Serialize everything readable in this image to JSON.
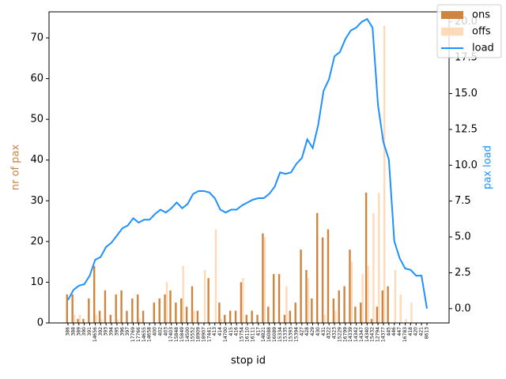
{
  "chart_data": {
    "type": "bar_line",
    "x_label": "stop id",
    "y_label": "nr of pax",
    "y2_label": "pax load",
    "categories": [
      "386",
      "388",
      "389",
      "390",
      "391",
      "14656",
      "392",
      "393",
      "394",
      "395",
      "396",
      "397",
      "17769",
      "17766",
      "14655",
      "14658",
      "400",
      "402",
      "403",
      "17403",
      "15848",
      "15849",
      "14500",
      "15552",
      "18909",
      "18907",
      "17441",
      "413",
      "414",
      "14700",
      "415",
      "416",
      "15754",
      "16110",
      "16111",
      "417",
      "14821",
      "16088",
      "16089",
      "15334",
      "15335",
      "15393",
      "15394",
      "427",
      "428",
      "429",
      "430",
      "431",
      "4322",
      "4323",
      "15229",
      "16799",
      "14339",
      "14342",
      "14347",
      "14340",
      "15432",
      "12794",
      "14377",
      "445",
      "446",
      "447",
      "16783",
      "418",
      "420",
      "421",
      "8613"
    ],
    "series": [
      {
        "name": "ons",
        "color": "#cd853f",
        "values": [
          7,
          7,
          1,
          1,
          6,
          14,
          3,
          8,
          2,
          7,
          8,
          3,
          6,
          7,
          3,
          0,
          5,
          6,
          7,
          8,
          5,
          6,
          4,
          9,
          3,
          0,
          11,
          0,
          5,
          2,
          3,
          3,
          10,
          2,
          3,
          2,
          22,
          4,
          12,
          12,
          2,
          3,
          5,
          18,
          13,
          6,
          27,
          21,
          23,
          6,
          8,
          9,
          18,
          4,
          5,
          32,
          1,
          4,
          8,
          9,
          0,
          0,
          0,
          0,
          0,
          0,
          0
        ]
      },
      {
        "name": "offs",
        "color": "#ffdab9",
        "values": [
          0,
          2,
          2,
          0,
          0,
          2,
          1,
          0,
          0,
          1,
          0,
          0,
          0,
          1,
          0,
          0,
          0,
          0,
          10,
          0,
          0,
          14,
          0,
          3,
          0,
          13,
          0,
          23,
          1,
          0,
          0,
          0,
          11,
          0,
          0,
          0,
          21,
          0,
          0,
          0,
          9,
          0,
          0,
          0,
          11,
          0,
          0,
          2,
          0,
          3,
          0,
          0,
          15,
          0,
          12,
          14,
          27,
          32,
          73,
          0,
          13,
          7,
          1,
          5,
          0,
          0,
          0
        ]
      },
      {
        "name": "load",
        "color": "#1e90ff",
        "axis": "y2",
        "values": [
          0.6,
          1.3,
          1.6,
          1.7,
          2.3,
          3.4,
          3.6,
          4.3,
          4.6,
          5.1,
          5.6,
          5.8,
          6.3,
          6.0,
          6.2,
          6.2,
          6.6,
          6.9,
          6.7,
          7.0,
          7.4,
          7.0,
          7.3,
          8.0,
          8.2,
          8.2,
          8.1,
          7.7,
          6.9,
          6.7,
          6.9,
          6.9,
          7.2,
          7.4,
          7.6,
          7.7,
          7.7,
          8.0,
          8.5,
          9.5,
          9.4,
          9.5,
          10.1,
          10.5,
          11.8,
          11.2,
          12.8,
          15.2,
          16.0,
          17.6,
          17.9,
          18.8,
          19.4,
          19.6,
          20.0,
          20.2,
          19.6,
          14.2,
          11.6,
          10.4,
          4.7,
          3.5,
          2.8,
          2.7,
          2.3,
          2.3,
          0.0
        ]
      }
    ],
    "ylim": [
      0,
      76.4
    ],
    "yticks": [
      0,
      10,
      20,
      30,
      40,
      50,
      60,
      70
    ],
    "y2lim": [
      -1.0,
      20.7
    ],
    "y2ticks": [
      {
        "value": 0,
        "label": "0.0"
      },
      {
        "value": 2.5,
        "label": "2.5"
      },
      {
        "value": 5,
        "label": "5.0"
      },
      {
        "value": 7.5,
        "label": "7.5"
      },
      {
        "value": 10,
        "label": "10.0"
      },
      {
        "value": 12.5,
        "label": "12.5"
      },
      {
        "value": 15,
        "label": "15.0"
      },
      {
        "value": 17.5,
        "label": "17.5"
      },
      {
        "value": 20,
        "label": "20.0"
      }
    ],
    "legend": "upper right"
  }
}
